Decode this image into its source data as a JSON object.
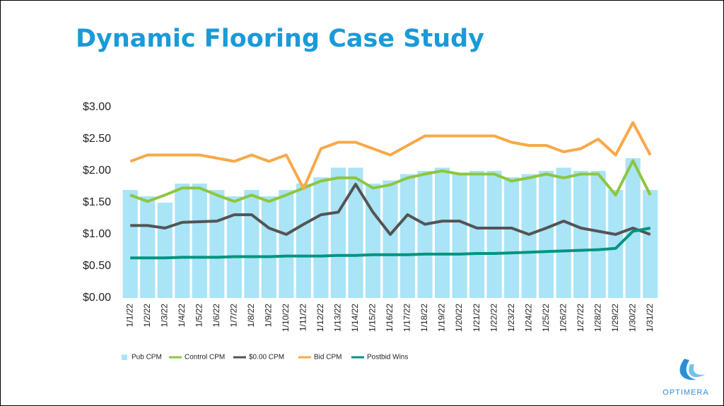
{
  "chart_data": {
    "type": "bar",
    "title": "Dynamic Flooring Case Study",
    "categories": [
      "1/1/22",
      "1/2/22",
      "1/3/22",
      "1/4/22",
      "1/5/22",
      "1/6/22",
      "1/7/22",
      "1/8/22",
      "1/9/22",
      "1/10/22",
      "1/11/22",
      "1/12/22",
      "1/13/22",
      "1/14/22",
      "1/15/22",
      "1/16/22",
      "1/17/22",
      "1/18/22",
      "1/19/22",
      "1/20/22",
      "1/21/22",
      "1/22/22",
      "1/23/22",
      "1/24/22",
      "1/25/22",
      "1/26/22",
      "1/27/22",
      "1/28/22",
      "1/29/22",
      "1/30/22",
      "1/31/22"
    ],
    "ylim": [
      0,
      3
    ],
    "yticks": [
      {
        "value": 0,
        "label": "$0.00"
      },
      {
        "value": 0.5,
        "label": "$0.50"
      },
      {
        "value": 1,
        "label": "$1.00"
      },
      {
        "value": 1.5,
        "label": "$1.50"
      },
      {
        "value": 2,
        "label": "$2.00"
      },
      {
        "value": 2.5,
        "label": "$2.50"
      },
      {
        "value": 3,
        "label": "$3.00"
      }
    ],
    "series": [
      {
        "name": "Pub CPM",
        "type": "bar",
        "color": "#a9e4f7",
        "values": [
          1.7,
          1.6,
          1.5,
          1.8,
          1.8,
          1.7,
          1.6,
          1.7,
          1.6,
          1.7,
          1.8,
          1.9,
          2.05,
          2.05,
          1.8,
          1.85,
          1.95,
          2.0,
          2.05,
          1.95,
          2.0,
          2.0,
          1.9,
          1.95,
          2.0,
          2.05,
          2.0,
          2.0,
          1.7,
          2.2,
          1.7
        ]
      },
      {
        "name": "Control CPM",
        "type": "line",
        "color": "#8dc63f",
        "values": [
          1.62,
          1.52,
          1.62,
          1.73,
          1.73,
          1.62,
          1.52,
          1.62,
          1.52,
          1.62,
          1.73,
          1.84,
          1.89,
          1.89,
          1.73,
          1.78,
          1.89,
          1.95,
          2.0,
          1.95,
          1.95,
          1.95,
          1.84,
          1.89,
          1.95,
          1.89,
          1.95,
          1.95,
          1.62,
          2.16,
          1.62
        ]
      },
      {
        "name": "$0.00 CPM",
        "type": "line",
        "color": "#545454",
        "values": [
          1.14,
          1.14,
          1.1,
          1.19,
          1.2,
          1.21,
          1.31,
          1.31,
          1.1,
          1.0,
          1.16,
          1.31,
          1.35,
          1.79,
          1.35,
          1.0,
          1.31,
          1.16,
          1.21,
          1.21,
          1.1,
          1.1,
          1.1,
          1.0,
          1.1,
          1.21,
          1.1,
          1.05,
          1.0,
          1.1,
          1.0
        ]
      },
      {
        "name": "Bid CPM",
        "type": "line",
        "color": "#f9a847",
        "values": [
          2.15,
          2.25,
          2.25,
          2.25,
          2.25,
          2.2,
          2.15,
          2.25,
          2.15,
          2.25,
          1.72,
          2.35,
          2.45,
          2.45,
          2.35,
          2.25,
          2.4,
          2.55,
          2.55,
          2.55,
          2.55,
          2.55,
          2.45,
          2.4,
          2.4,
          2.3,
          2.35,
          2.5,
          2.25,
          2.76,
          2.25
        ]
      },
      {
        "name": "Postbid Wins",
        "type": "line",
        "color": "#00947f",
        "values": [
          0.63,
          0.63,
          0.63,
          0.64,
          0.64,
          0.64,
          0.65,
          0.65,
          0.65,
          0.66,
          0.66,
          0.66,
          0.67,
          0.67,
          0.68,
          0.68,
          0.68,
          0.69,
          0.69,
          0.69,
          0.7,
          0.7,
          0.71,
          0.72,
          0.73,
          0.74,
          0.75,
          0.76,
          0.78,
          1.05,
          1.1
        ]
      }
    ]
  },
  "logo": "OPTIMERA"
}
